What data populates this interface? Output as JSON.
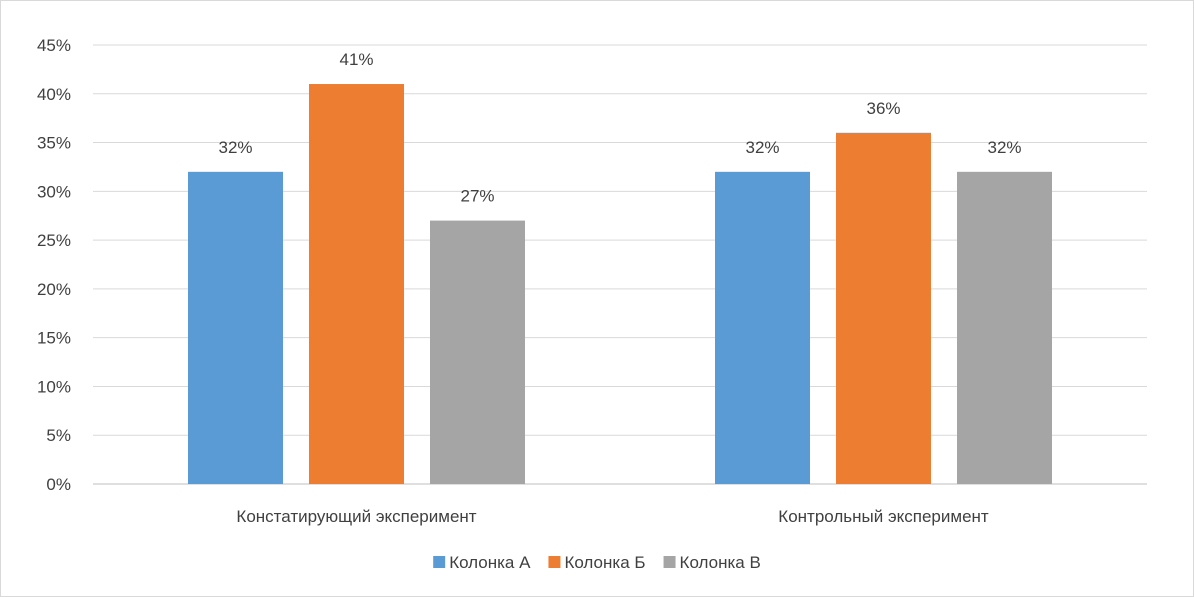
{
  "chart_data": {
    "type": "bar",
    "title": "",
    "xlabel": "",
    "ylabel": "",
    "categories": [
      "Констатирующий эксперимент",
      "Контрольный эксперимент"
    ],
    "series": [
      {
        "name": "Колонка А",
        "color": "#5b9bd5",
        "values": [
          32,
          32
        ],
        "labels": [
          "32%",
          "32%"
        ]
      },
      {
        "name": "Колонка Б",
        "color": "#ed7d31",
        "values": [
          41,
          36
        ],
        "labels": [
          "41%",
          "36%"
        ]
      },
      {
        "name": "Колонка В",
        "color": "#a5a5a5",
        "values": [
          27,
          32
        ],
        "labels": [
          "27%",
          "32%"
        ]
      }
    ],
    "ylim": [
      0,
      45
    ],
    "yticks": [
      0,
      5,
      10,
      15,
      20,
      25,
      30,
      35,
      40,
      45
    ],
    "ytick_labels": [
      "0%",
      "5%",
      "10%",
      "15%",
      "20%",
      "25%",
      "30%",
      "35%",
      "40%",
      "45%"
    ],
    "grid": true,
    "legend_position": "bottom"
  }
}
